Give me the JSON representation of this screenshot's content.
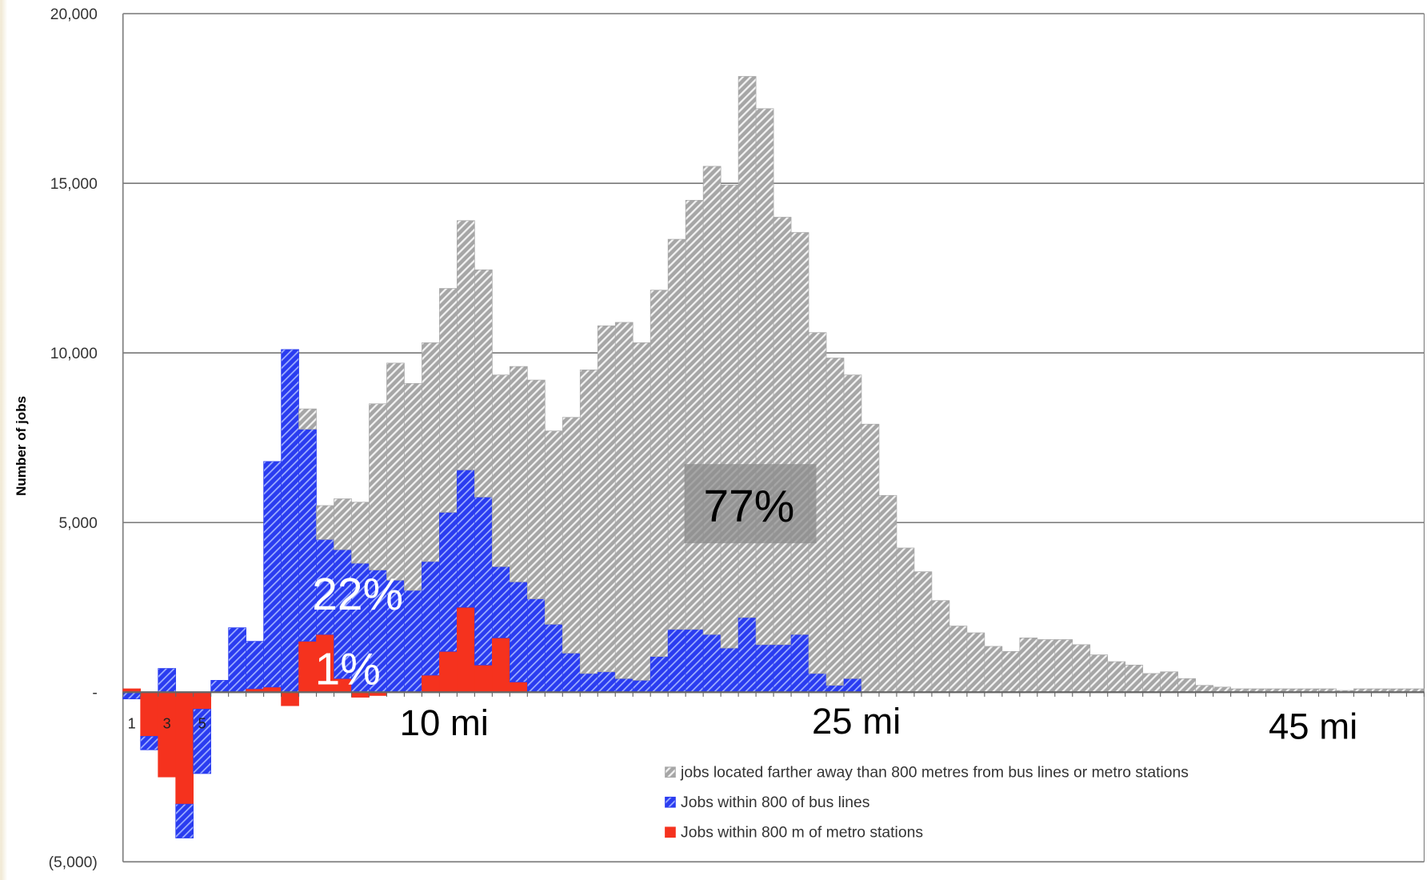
{
  "chart_data": {
    "type": "bar",
    "stacked": true,
    "y_label": "Number of jobs",
    "categories": [
      "1",
      null,
      "3",
      null,
      "5",
      null,
      null,
      null,
      null,
      null,
      null,
      null,
      null,
      null,
      null,
      null,
      null,
      null,
      null,
      null,
      null,
      null,
      null,
      null,
      null,
      null,
      null,
      null,
      null,
      null,
      null,
      null,
      null,
      null,
      null,
      null,
      null,
      null,
      null,
      null,
      null,
      null,
      null,
      null,
      null,
      null,
      null,
      null,
      null,
      null,
      null,
      null,
      null,
      null,
      null,
      null,
      null,
      null,
      null,
      null,
      null,
      null,
      null,
      null,
      null,
      null,
      null,
      null,
      null,
      null,
      null,
      null,
      null,
      null
    ],
    "series": [
      {
        "name": "jobs located farther away than 800 metres from bus lines or metro stations",
        "color": "#a6a6a6",
        "values": [
          0,
          0,
          0,
          0,
          0,
          0,
          0,
          0,
          0,
          0,
          600,
          1000,
          1500,
          1800,
          4900,
          6400,
          6100,
          6450,
          6600,
          7350,
          6700,
          5650,
          6350,
          6450,
          5700,
          6950,
          8950,
          10200,
          10500,
          9950,
          10800,
          11500,
          12650,
          13800,
          13650,
          15950,
          15800,
          12600,
          11850,
          10050,
          9650,
          8950,
          7900,
          5800,
          4250,
          3550,
          2700,
          1950,
          1750,
          1350,
          1200,
          1600,
          1550,
          1550,
          1400,
          1100,
          900,
          800,
          550,
          600,
          400,
          200,
          150,
          100,
          100,
          100,
          100,
          100,
          100,
          50,
          100,
          100,
          100,
          100
        ]
      },
      {
        "name": "Jobs within 800 of bus lines",
        "color": "#2a3cf0",
        "values": [
          -200,
          -400,
          700,
          -1000,
          -1900,
          350,
          1900,
          1400,
          6650,
          10100,
          6250,
          2800,
          3800,
          3800,
          3600,
          3300,
          3000,
          3350,
          4100,
          4050,
          4950,
          2100,
          2950,
          2750,
          2000,
          1150,
          550,
          600,
          400,
          350,
          1050,
          1850,
          1850,
          1700,
          1300,
          2200,
          1400,
          1400,
          1700,
          550,
          200,
          400,
          0,
          0,
          0,
          0,
          0,
          0,
          0,
          0,
          0,
          0,
          0,
          0,
          0,
          0,
          0,
          0,
          0,
          0,
          0,
          0,
          0,
          0,
          0,
          0,
          0,
          0,
          0,
          0,
          0,
          0,
          0,
          0
        ]
      },
      {
        "name": "Jobs within 800 m of metro stations",
        "color": "#f5321e",
        "values": [
          100,
          -1300,
          -2500,
          -3300,
          -500,
          0,
          0,
          100,
          150,
          -400,
          1500,
          1700,
          400,
          -150,
          -100,
          0,
          0,
          500,
          1200,
          2500,
          800,
          1600,
          300,
          0,
          0,
          0,
          0,
          0,
          0,
          0,
          0,
          0,
          0,
          0,
          0,
          0,
          0,
          0,
          0,
          0,
          0,
          0,
          0,
          0,
          0,
          0,
          0,
          0,
          0,
          0,
          0,
          0,
          0,
          0,
          0,
          0,
          0,
          0,
          0,
          0,
          0,
          0,
          0,
          0,
          0,
          0,
          0,
          0,
          0,
          0,
          0,
          0,
          0,
          0
        ]
      }
    ],
    "ylim": [
      -5000,
      20000
    ],
    "yticks": [
      {
        "value": -5000,
        "label": "(5,000)"
      },
      {
        "value": 0,
        "label": "-"
      },
      {
        "value": 5000,
        "label": "5,000"
      },
      {
        "value": 10000,
        "label": "10,000"
      },
      {
        "value": 15000,
        "label": "15,000"
      },
      {
        "value": 20000,
        "label": "20,000"
      }
    ],
    "grid": true,
    "annotations": [
      "10 mi",
      "25 mi",
      "45 mi",
      "77%",
      "22%",
      "1%"
    ]
  }
}
